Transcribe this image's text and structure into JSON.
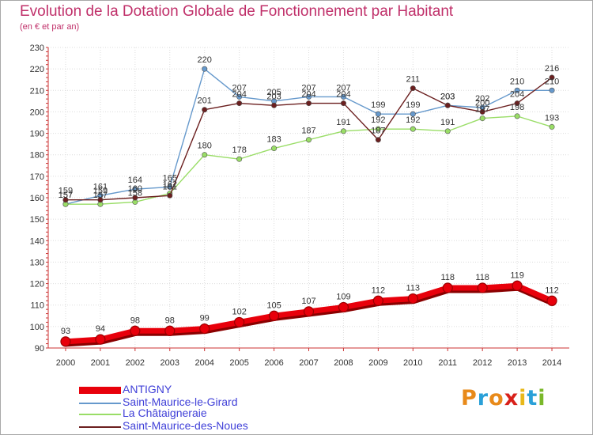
{
  "header": {
    "title": "Evolution de la Dotation Globale de Fonctionnement par Habitant",
    "subtitle": "(en € et par an)"
  },
  "logo": {
    "text": "Proxiti",
    "colors": [
      "#e88a1a",
      "#2aa0d8",
      "#e88a1a",
      "#d8201a",
      "#e8b81a",
      "#2aa0d8",
      "#7ab82a"
    ]
  },
  "chart_data": {
    "type": "line",
    "x": [
      "2000",
      "2001",
      "2002",
      "2003",
      "2004",
      "2005",
      "2006",
      "2007",
      "2008",
      "2009",
      "2010",
      "2011",
      "2012",
      "2013",
      "2014"
    ],
    "ylim": [
      90,
      230
    ],
    "yticks": [
      90,
      100,
      110,
      120,
      130,
      140,
      150,
      160,
      170,
      180,
      190,
      200,
      210,
      220,
      230
    ],
    "grid": true,
    "legend_position": "bottom-left",
    "series": [
      {
        "name": "ANTIGNY",
        "color": "#e8000b",
        "values": [
          93,
          94,
          98,
          98,
          99,
          102,
          105,
          107,
          109,
          112,
          113,
          118,
          118,
          119,
          112
        ]
      },
      {
        "name": "Saint-Maurice-le-Girard",
        "color": "#6699cc",
        "values": [
          157,
          161,
          164,
          165,
          220,
          207,
          205,
          207,
          207,
          199,
          199,
          203,
          202,
          210,
          210
        ]
      },
      {
        "name": "La Châtaigneraie",
        "color": "#99dd66",
        "values": [
          157,
          157,
          158,
          162,
          180,
          178,
          183,
          187,
          191,
          192,
          192,
          191,
          197,
          198,
          193
        ]
      },
      {
        "name": "Saint-Maurice-des-Noues",
        "color": "#6b1f1f",
        "values": [
          159,
          159,
          160,
          161,
          201,
          204,
          203,
          204,
          204,
          187,
          211,
          203,
          200,
          204,
          216
        ]
      }
    ]
  }
}
